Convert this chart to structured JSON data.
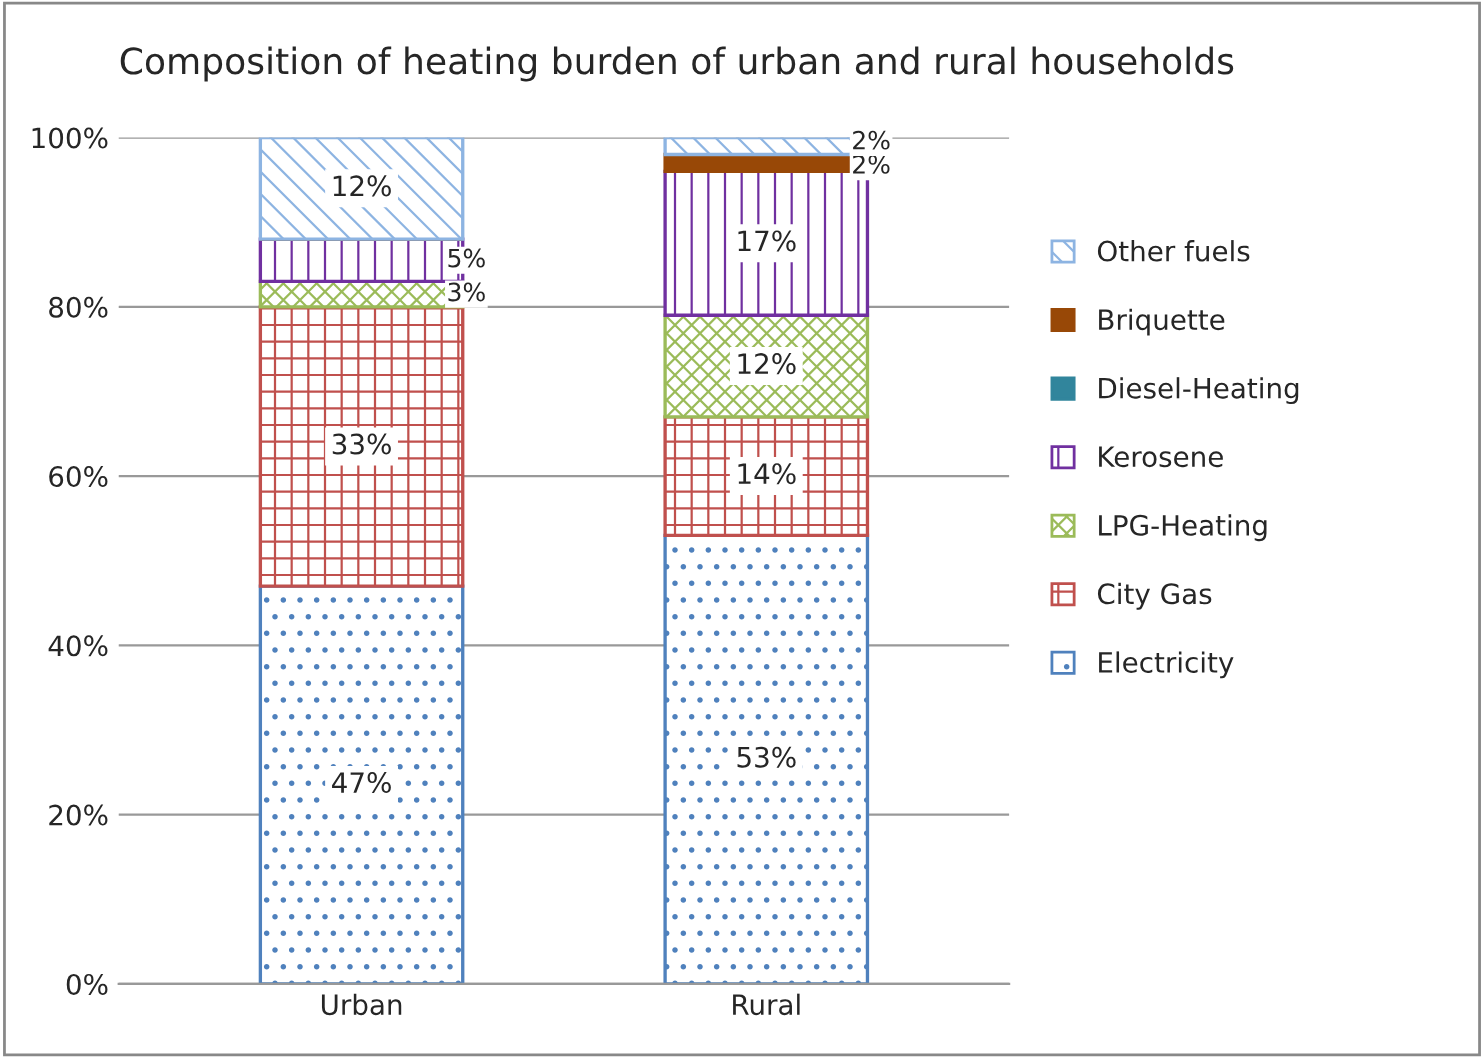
{
  "chart_data": {
    "type": "bar",
    "stacked": true,
    "title": "Composition of heating burden of urban and rural households",
    "categories": [
      "Urban",
      "Rural"
    ],
    "series": [
      {
        "name": "Electricity",
        "color": "#4f81bd",
        "values": [
          47,
          53
        ],
        "value_labels": [
          "47%",
          "53%"
        ]
      },
      {
        "name": "City Gas",
        "color": "#c0504d",
        "values": [
          33,
          14
        ],
        "value_labels": [
          "33%",
          "14%"
        ]
      },
      {
        "name": "LPG-Heating",
        "color": "#9bbb59",
        "values": [
          3,
          12
        ],
        "value_labels": [
          "3%",
          "12%"
        ]
      },
      {
        "name": "Kerosene",
        "color": "#7030a0",
        "values": [
          5,
          17
        ],
        "value_labels": [
          "5%",
          "17%"
        ]
      },
      {
        "name": "Diesel-Heating",
        "color": "#31859c",
        "values": [
          0,
          0
        ],
        "value_labels": [
          null,
          null
        ]
      },
      {
        "name": "Briquette",
        "color": "#984807",
        "values": [
          0,
          2
        ],
        "value_labels": [
          null,
          "2%"
        ]
      },
      {
        "name": "Other fuels",
        "color": "#8db4e2",
        "values": [
          12,
          2
        ],
        "value_labels": [
          "12%",
          "2%"
        ]
      }
    ],
    "ylim": [
      0,
      100
    ],
    "yticks": [
      {
        "value": 0,
        "label": "0%"
      },
      {
        "value": 20,
        "label": "20%"
      },
      {
        "value": 40,
        "label": "40%"
      },
      {
        "value": 60,
        "label": "60%"
      },
      {
        "value": 80,
        "label": "80%"
      },
      {
        "value": 100,
        "label": "100%"
      }
    ],
    "grid": "y",
    "legend": "right"
  }
}
